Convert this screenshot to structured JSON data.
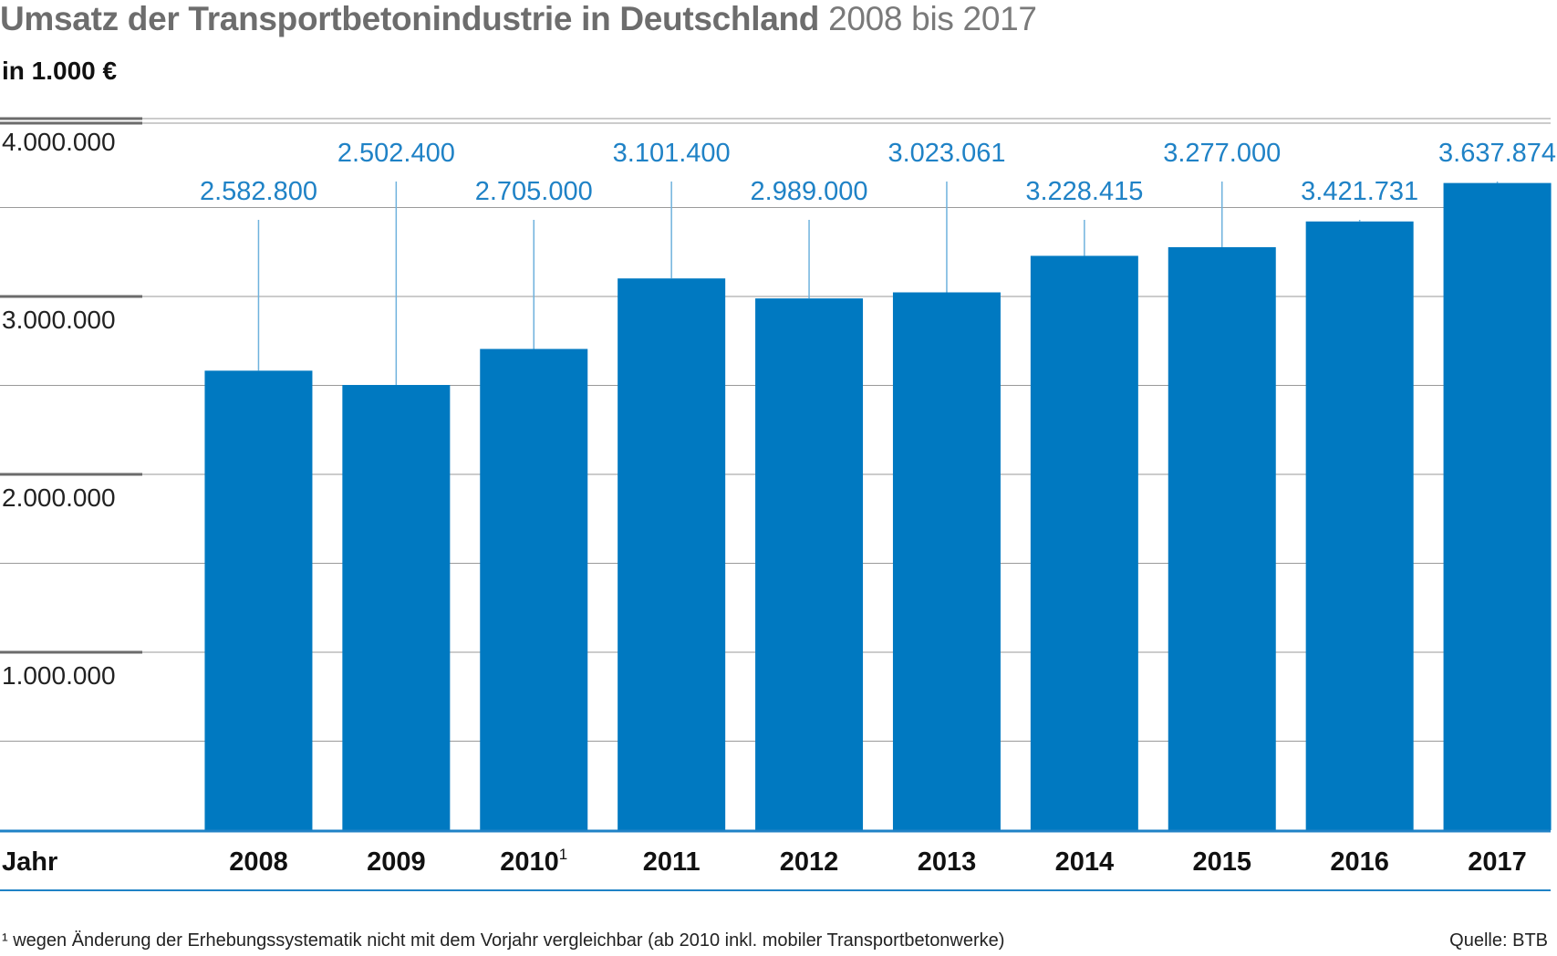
{
  "chart_data": {
    "type": "bar",
    "title": "Umsatz der Transportbetonindustrie in Deutschland",
    "subtitle": "2008 bis 2017",
    "unit_label": "in 1.000 €",
    "xlabel": "Jahr",
    "categories": [
      "2008",
      "2009",
      "2010",
      "2011",
      "2012",
      "2013",
      "2014",
      "2015",
      "2016",
      "2017"
    ],
    "category_superscripts": [
      "",
      "",
      "1",
      "",
      "",
      "",
      "",
      "",
      "",
      ""
    ],
    "values": [
      2582800,
      2502400,
      2705000,
      3101400,
      2989000,
      3023061,
      3228415,
      3277000,
      3421731,
      3637874
    ],
    "value_labels": [
      "2.582.800",
      "2.502.400",
      "2.705.000",
      "3.101.400",
      "2.989.000",
      "3.023.061",
      "3.228.415",
      "3.277.000",
      "3.421.731",
      "3.637.874"
    ],
    "yticks": [
      1000000,
      2000000,
      3000000,
      4000000
    ],
    "ytick_labels": [
      "1.000.000",
      "2.000.000",
      "3.000.000",
      "4.000.000"
    ],
    "ylim": [
      0,
      4000000
    ],
    "bar_color": "#0079c1",
    "label_color": "#1f82c6",
    "grid": true,
    "footnote": "¹ wegen Änderung der Erhebungssystematik nicht mit dem Vorjahr vergleichbar (ab 2010 inkl. mobiler Transportbetonwerke)",
    "source": "Quelle: BTB"
  }
}
